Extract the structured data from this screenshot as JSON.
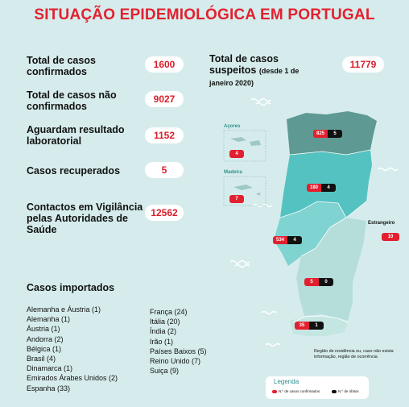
{
  "title": "SITUAÇÃO EPIDEMIOLÓGICA EM PORTUGAL",
  "stats": [
    {
      "label": "Total de casos confirmados",
      "value": "1600"
    },
    {
      "label": "Total de casos não confirmados",
      "value": "9027"
    },
    {
      "label": "Aguardam resultado laboratorial",
      "value": "1152"
    },
    {
      "label": "Casos recuperados",
      "value": "5"
    },
    {
      "label": "Contactos em Vigilância pelas Autoridades de Saúde",
      "value": "12562"
    }
  ],
  "suspected": {
    "label": "Total de casos suspeitos",
    "note": "(desde 1 de janeiro 2020)",
    "value": "11779"
  },
  "imported": {
    "title": "Casos importados",
    "col1": [
      "Alemanha e Áustria (1)",
      "Alemanha (1)",
      "Áustria (1)",
      "Andorra (2)",
      "Bélgica (1)",
      "Brasil (4)",
      "Dinamarca (1)",
      "Emirados Árabes Unidos (2)",
      "Espanha (33)"
    ],
    "col2": [
      "França (24)",
      "Itália (20)",
      "Índia (2)",
      "Irão (1)",
      "Países Baixos (5)",
      "Reino Unido (7)",
      "Suiça (9)"
    ]
  },
  "map": {
    "acores": {
      "label": "Açores",
      "confirmed": "4"
    },
    "madeira": {
      "label": "Madeira",
      "confirmed": "7"
    },
    "estrangeiro": {
      "label": "Estrangeiro",
      "confirmed": "10"
    },
    "regions": [
      {
        "name": "Norte",
        "confirmed": "825",
        "deaths": "5"
      },
      {
        "name": "Centro",
        "confirmed": "180",
        "deaths": "4"
      },
      {
        "name": "Lisboa e Vale do Tejo",
        "confirmed": "534",
        "deaths": "4"
      },
      {
        "name": "Alentejo",
        "confirmed": "5",
        "deaths": "0"
      },
      {
        "name": "Algarve",
        "confirmed": "35",
        "deaths": "1"
      }
    ],
    "note": "Região de residência ou, caso não exista informação, região de ocorrência"
  },
  "legend": {
    "title": "Legenda",
    "confirmed": "N.º de casos confirmados",
    "deaths": "N.º de óbitos"
  },
  "colors": {
    "background": "#d6ecec",
    "accent_red": "#e3202f",
    "norte": "#5e9a93",
    "centro": "#54c2c0",
    "lisboa": "#7fd3d1",
    "south": "#b5dedb"
  }
}
